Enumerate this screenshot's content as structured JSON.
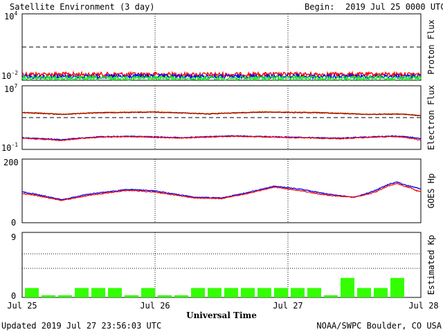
{
  "header": {
    "title": "Satellite Environment (3 day)",
    "begin_label": "Begin:",
    "begin_value": "2019 Jul 25 0000 UTC"
  },
  "footer": {
    "updated": "Updated 2019 Jul 27 23:56:03 UTC",
    "credit": "NOAA/SWPC Boulder, CO USA"
  },
  "x_axis": {
    "label": "Universal Time",
    "ticks": [
      "Jul 25",
      "Jul 26",
      "Jul 27",
      "Jul 28"
    ],
    "range_days": [
      0,
      3
    ]
  },
  "panels": {
    "proton": {
      "ylabel": "Proton Flux",
      "ytick_top_base": "10",
      "ytick_top_exp": "4",
      "ytick_bottom_base": "10",
      "ytick_bottom_exp": "-2"
    },
    "electron": {
      "ylabel": "Electron Flux",
      "ytick_top_base": "10",
      "ytick_top_exp": "7",
      "ytick_bottom_base": "10",
      "ytick_bottom_exp": "-1"
    },
    "hp": {
      "ylabel": "GOES Hp",
      "ytick_top": "200",
      "ytick_bottom": "0"
    },
    "kp": {
      "ylabel": "Estimated Kp",
      "ytick_top": "9",
      "ytick_bottom": "0"
    }
  },
  "colors": {
    "red": "#ff0000",
    "blue": "#0000ff",
    "green": "#22ee22",
    "orange": "#ff9900",
    "maroon": "#990000",
    "kp_bar": "#33ff00"
  },
  "chart_data": [
    {
      "type": "line",
      "panel": "proton",
      "yscale": "log",
      "ylim": [
        0.01,
        10000
      ],
      "xlim_days": [
        0,
        3
      ],
      "threshold": 10,
      "series": [
        {
          "color": "red",
          "x_days": [
            0,
            0.5,
            1,
            1.5,
            2,
            2.5,
            3
          ],
          "values": [
            0.035,
            0.034,
            0.034,
            0.033,
            0.034,
            0.034,
            0.035
          ]
        },
        {
          "color": "blue",
          "x_days": [
            0,
            0.5,
            1,
            1.5,
            2,
            2.5,
            3
          ],
          "values": [
            0.022,
            0.021,
            0.022,
            0.021,
            0.022,
            0.021,
            0.022
          ]
        },
        {
          "color": "green",
          "x_days": [
            0,
            0.5,
            1,
            1.5,
            2,
            2.5,
            3
          ],
          "values": [
            0.016,
            0.015,
            0.016,
            0.015,
            0.016,
            0.015,
            0.016
          ]
        }
      ]
    },
    {
      "type": "line",
      "panel": "electron",
      "yscale": "log",
      "ylim": [
        0.1,
        10000000
      ],
      "xlim_days": [
        0,
        3
      ],
      "threshold": 1000,
      "series": [
        {
          "color": "orange",
          "x_days": [
            0,
            0.3,
            0.6,
            1,
            1.4,
            1.8,
            2.2,
            2.6,
            2.85,
            3
          ],
          "values": [
            4600,
            2600,
            4600,
            5200,
            3000,
            5200,
            4600,
            2600,
            2800,
            1800
          ]
        },
        {
          "color": "maroon",
          "x_days": [
            0,
            0.3,
            0.6,
            1,
            1.4,
            1.8,
            2.2,
            2.6,
            2.85,
            3
          ],
          "values": [
            4200,
            2500,
            4200,
            4800,
            2900,
            4800,
            4200,
            2500,
            2700,
            1700
          ]
        },
        {
          "color": "blue",
          "x_days": [
            0,
            0.3,
            0.6,
            0.8,
            1.2,
            1.6,
            2,
            2.4,
            2.8,
            3
          ],
          "values": [
            3,
            1.6,
            4,
            4.4,
            3,
            5,
            3.5,
            2.6,
            4.8,
            2.5
          ]
        },
        {
          "color": "red",
          "x_days": [
            0,
            0.3,
            0.6,
            0.8,
            1.2,
            1.6,
            2,
            2.4,
            2.8,
            3
          ],
          "values": [
            2.5,
            1.3,
            3.5,
            4,
            2.6,
            4.4,
            3,
            2.2,
            4.2,
            1.4
          ]
        }
      ]
    },
    {
      "type": "line",
      "panel": "hp",
      "ylim": [
        0,
        200
      ],
      "xlim_days": [
        0,
        3
      ],
      "series": [
        {
          "color": "blue",
          "x_days": [
            0,
            0.1,
            0.3,
            0.5,
            0.8,
            1.0,
            1.3,
            1.5,
            1.7,
            1.9,
            2.1,
            2.3,
            2.4,
            2.5,
            2.65,
            2.75,
            2.82,
            2.87,
            2.92,
            2.97,
            3.0
          ],
          "values": [
            97,
            90,
            72,
            90,
            105,
            100,
            80,
            78,
            95,
            115,
            105,
            90,
            85,
            80,
            100,
            120,
            128,
            120,
            115,
            110,
            105
          ]
        },
        {
          "color": "red",
          "x_days": [
            0,
            0.1,
            0.3,
            0.5,
            0.8,
            1.0,
            1.3,
            1.5,
            1.7,
            1.9,
            2.1,
            2.3,
            2.4,
            2.5,
            2.65,
            2.75,
            2.82,
            2.87,
            2.92,
            2.97,
            3.0
          ],
          "values": [
            92,
            86,
            70,
            86,
            102,
            96,
            78,
            76,
            92,
            112,
            100,
            86,
            83,
            80,
            95,
            115,
            124,
            115,
            110,
            100,
            98
          ]
        }
      ]
    },
    {
      "type": "bar",
      "panel": "kp",
      "ylim": [
        0,
        9
      ],
      "bar_width_hours": 3,
      "x_hours": [
        0,
        3,
        6,
        9,
        12,
        15,
        18,
        21,
        24,
        27,
        30,
        33,
        36,
        39,
        42,
        45,
        48,
        51,
        54,
        57,
        60,
        63,
        66,
        69
      ],
      "values": [
        1.3,
        0.3,
        0.3,
        1.3,
        1.3,
        1.3,
        0.3,
        1.3,
        0.3,
        0.3,
        1.3,
        1.3,
        1.3,
        1.3,
        1.3,
        1.3,
        1.3,
        1.3,
        0.3,
        2.7,
        1.3,
        1.3,
        2.7,
        0
      ]
    }
  ]
}
